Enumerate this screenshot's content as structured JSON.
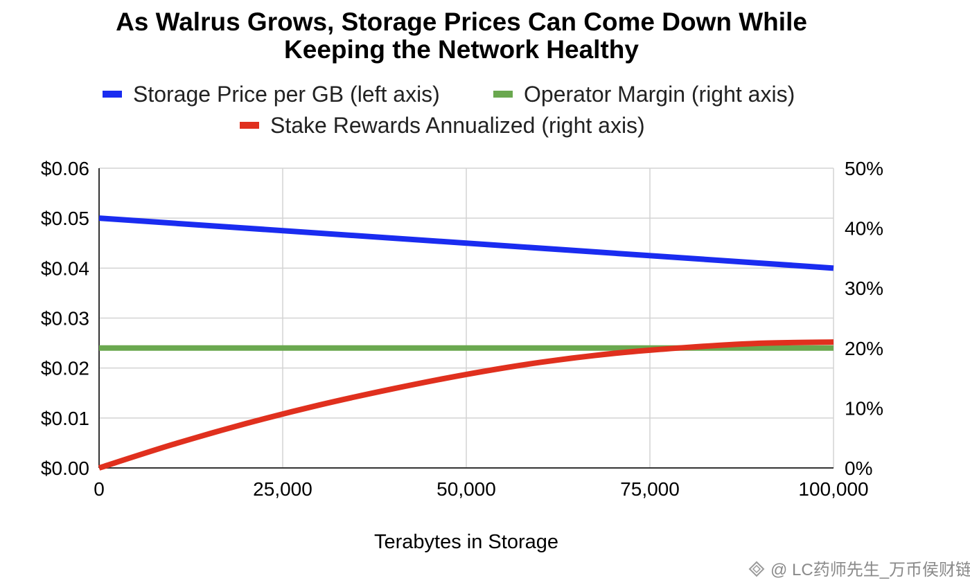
{
  "chart_data": {
    "type": "line",
    "title_lines": [
      "As Walrus Grows, Storage Prices Can Come Down While",
      "Keeping the Network Healthy"
    ],
    "xlabel": "Terabytes in Storage",
    "x_ticks": [
      "0",
      "25,000",
      "50,000",
      "75,000",
      "100,000"
    ],
    "x_tick_values": [
      0,
      25000,
      50000,
      75000,
      100000
    ],
    "xlim": [
      0,
      100000
    ],
    "y_left_ticks": [
      "$0.00",
      "$0.01",
      "$0.02",
      "$0.03",
      "$0.04",
      "$0.05",
      "$0.06"
    ],
    "y_left_tick_values": [
      0,
      0.01,
      0.02,
      0.03,
      0.04,
      0.05,
      0.06
    ],
    "y_left_lim": [
      0,
      0.06
    ],
    "y_right_ticks": [
      "0%",
      "10%",
      "20%",
      "30%",
      "40%",
      "50%"
    ],
    "y_right_tick_values": [
      0,
      10,
      20,
      30,
      40,
      50
    ],
    "y_right_lim": [
      0,
      50
    ],
    "grid": true,
    "legend_position": "top",
    "series": [
      {
        "name": "Storage Price per GB (left axis)",
        "axis": "left",
        "color": "#1a2cf0",
        "x": [
          0,
          100000
        ],
        "y": [
          0.05,
          0.04
        ]
      },
      {
        "name": "Operator Margin (right axis)",
        "axis": "right",
        "color": "#6aa84f",
        "x": [
          0,
          100000
        ],
        "y": [
          20,
          20
        ]
      },
      {
        "name": "Stake Rewards Annualized (right axis)",
        "axis": "right",
        "color": "#e0301e",
        "x": [
          0,
          10000,
          20000,
          30000,
          40000,
          50000,
          60000,
          70000,
          80000,
          90000,
          100000
        ],
        "y": [
          0,
          3.9,
          7.4,
          10.5,
          13.2,
          15.6,
          17.6,
          19.1,
          20.1,
          20.8,
          21.0
        ]
      }
    ]
  },
  "watermark": {
    "icon": "diamond-logo-icon",
    "text": "@ LC药师先生_万币侯财链"
  }
}
